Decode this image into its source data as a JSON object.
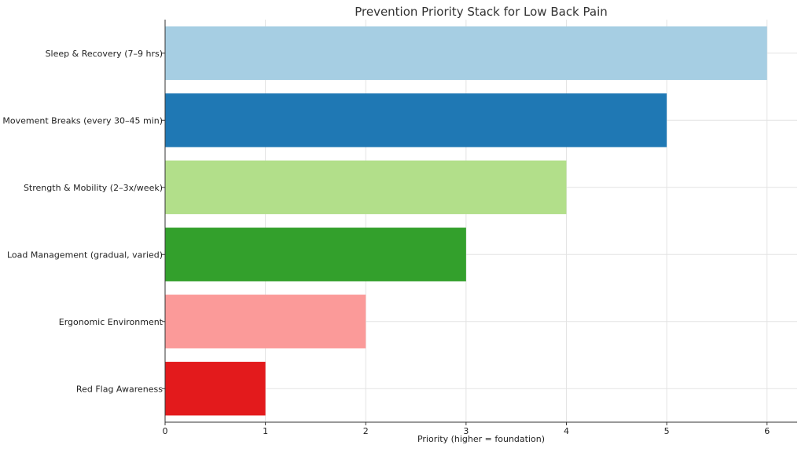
{
  "chart_data": {
    "type": "bar",
    "orientation": "horizontal",
    "title": "Prevention Priority Stack for Low Back Pain",
    "xlabel": "Priority (higher = foundation)",
    "ylabel": "",
    "xlim": [
      0,
      6.3
    ],
    "xticks": [
      "0",
      "1",
      "2",
      "3",
      "4",
      "5",
      "6"
    ],
    "grid": true,
    "categories": [
      "Sleep & Recovery (7–9 hrs)",
      "Movement Breaks (every 30–45 min)",
      "Strength & Mobility (2–3x/week)",
      "Load Management (gradual, varied)",
      "Ergonomic Environment",
      "Red Flag Awareness"
    ],
    "values": [
      6,
      5,
      4,
      3,
      2,
      1
    ],
    "colors": [
      "#a6cee3",
      "#1f78b4",
      "#b2df8a",
      "#33a02c",
      "#fb9a99",
      "#e31a1c"
    ]
  }
}
